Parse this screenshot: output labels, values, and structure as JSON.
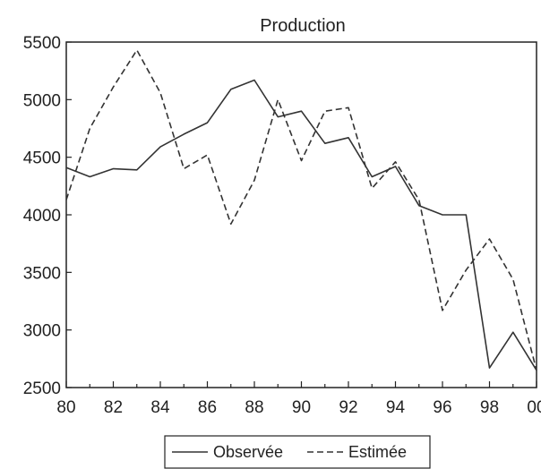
{
  "chart_data": {
    "type": "line",
    "title": "Production",
    "xlabel": "",
    "ylabel": "",
    "x": [
      80,
      81,
      82,
      83,
      84,
      85,
      86,
      87,
      88,
      89,
      90,
      91,
      92,
      93,
      94,
      95,
      96,
      97,
      98,
      99,
      100
    ],
    "xticks": [
      "80",
      "82",
      "84",
      "86",
      "88",
      "90",
      "92",
      "94",
      "96",
      "98",
      "00"
    ],
    "xlim": [
      80,
      100
    ],
    "ylim": [
      2500,
      5500
    ],
    "yticks": [
      2500,
      3000,
      3500,
      4000,
      4500,
      5000,
      5500
    ],
    "grid": false,
    "legend_position": "bottom",
    "series": [
      {
        "name": "Observée",
        "style": "solid",
        "color": "#333333",
        "values": [
          4410,
          4330,
          4400,
          4390,
          4590,
          4700,
          4800,
          5090,
          5170,
          4850,
          4900,
          4620,
          4670,
          4330,
          4420,
          4080,
          4000,
          4000,
          2670,
          2980,
          2650
        ]
      },
      {
        "name": "Estimée",
        "style": "dashed",
        "color": "#333333",
        "values": [
          4130,
          4750,
          5110,
          5430,
          5060,
          4400,
          4520,
          3920,
          4300,
          5000,
          4470,
          4900,
          4930,
          4230,
          4460,
          4130,
          3170,
          3520,
          3790,
          3440,
          2650
        ]
      }
    ]
  }
}
